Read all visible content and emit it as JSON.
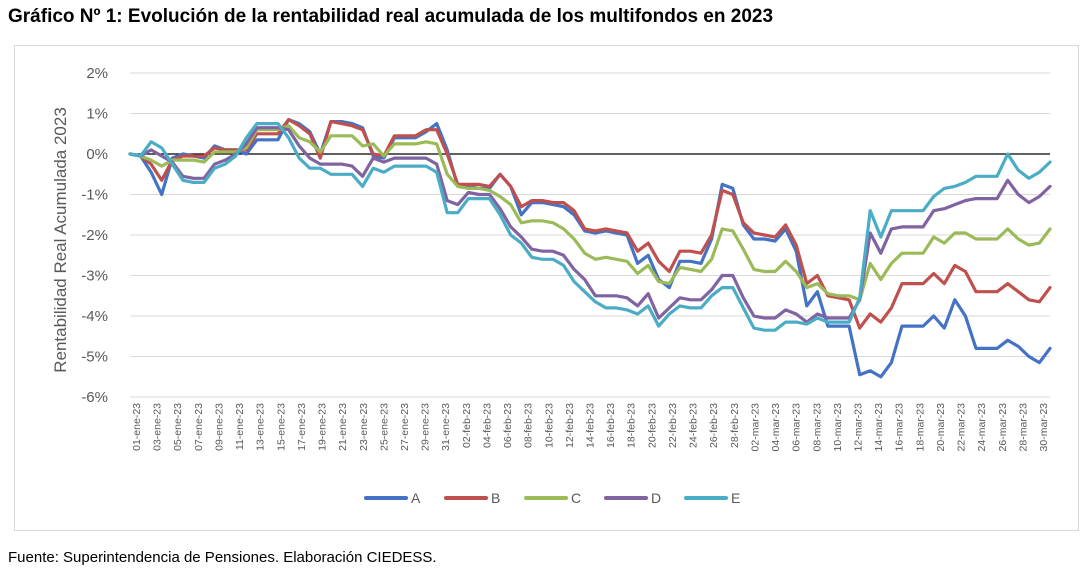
{
  "title": "Gráfico Nº 1: Evolución de la rentabilidad real acumulada de los multifondos en 2023",
  "source": "Fuente: Superintendencia de Pensiones. Elaboración CIEDESS.",
  "chart_data": {
    "type": "line",
    "ylabel": "Rentabilidad Real Acumulada 2023",
    "xlabel": "",
    "ylim": [
      -6,
      2
    ],
    "y_unit": "%",
    "y_ticks": [
      "2%",
      "1%",
      "0%",
      "-1%",
      "-2%",
      "-3%",
      "-4%",
      "-5%",
      "-6%"
    ],
    "grid": "horizontal",
    "legend_position": "bottom",
    "x_tick_labels": [
      "01-ene-23",
      "03-ene-23",
      "05-ene-23",
      "07-ene-23",
      "09-ene-23",
      "11-ene-23",
      "13-ene-23",
      "15-ene-23",
      "17-ene-23",
      "19-ene-23",
      "21-ene-23",
      "23-ene-23",
      "25-ene-23",
      "27-ene-23",
      "29-ene-23",
      "31-ene-23",
      "02-feb-23",
      "04-feb-23",
      "06-feb-23",
      "08-feb-23",
      "10-feb-23",
      "12-feb-23",
      "14-feb-23",
      "16-feb-23",
      "18-feb-23",
      "20-feb-23",
      "22-feb-23",
      "24-feb-23",
      "26-feb-23",
      "28-feb-23",
      "02-mar-23",
      "04-mar-23",
      "06-mar-23",
      "08-mar-23",
      "10-mar-23",
      "12-mar-23",
      "14-mar-23",
      "16-mar-23",
      "18-mar-23",
      "20-mar-23",
      "22-mar-23",
      "24-mar-23",
      "26-mar-23",
      "28-mar-23",
      "30-mar-23"
    ],
    "series": [
      {
        "name": "A",
        "color": "#4472C4",
        "values": [
          0,
          -0.05,
          -0.45,
          -1.0,
          -0.1,
          0.0,
          -0.05,
          -0.1,
          0.2,
          0.1,
          0.1,
          0.0,
          0.35,
          0.35,
          0.35,
          0.85,
          0.75,
          0.55,
          0.0,
          0.8,
          0.8,
          0.75,
          0.65,
          -0.05,
          -0.1,
          0.4,
          0.4,
          0.4,
          0.55,
          0.75,
          0.1,
          -0.8,
          -0.8,
          -0.85,
          -0.85,
          -0.5,
          -0.8,
          -1.5,
          -1.2,
          -1.2,
          -1.25,
          -1.3,
          -1.5,
          -1.9,
          -1.95,
          -1.9,
          -1.95,
          -2.0,
          -2.7,
          -2.5,
          -3.1,
          -3.3,
          -2.65,
          -2.65,
          -2.7,
          -2.1,
          -0.75,
          -0.85,
          -1.75,
          -2.1,
          -2.1,
          -2.15,
          -1.85,
          -2.4,
          -3.75,
          -3.4,
          -4.25,
          -4.25,
          -4.25,
          -5.45,
          -5.35,
          -5.5,
          -5.15,
          -4.25,
          -4.25,
          -4.25,
          -4.0,
          -4.3,
          -3.6,
          -4.0,
          -4.8,
          -4.8,
          -4.8,
          -4.6,
          -4.75,
          -5.0,
          -5.15,
          -4.8
        ]
      },
      {
        "name": "B",
        "color": "#C0504D",
        "values": [
          0,
          -0.05,
          -0.25,
          -0.65,
          -0.15,
          -0.05,
          -0.05,
          -0.05,
          0.15,
          0.1,
          0.1,
          0.1,
          0.5,
          0.5,
          0.5,
          0.85,
          0.7,
          0.5,
          -0.1,
          0.8,
          0.75,
          0.7,
          0.6,
          0.0,
          -0.05,
          0.45,
          0.45,
          0.45,
          0.6,
          0.6,
          0.0,
          -0.75,
          -0.75,
          -0.75,
          -0.8,
          -0.5,
          -0.8,
          -1.3,
          -1.15,
          -1.15,
          -1.2,
          -1.2,
          -1.4,
          -1.85,
          -1.9,
          -1.85,
          -1.9,
          -1.95,
          -2.4,
          -2.2,
          -2.65,
          -2.9,
          -2.4,
          -2.4,
          -2.45,
          -2.0,
          -0.9,
          -1.0,
          -1.7,
          -1.95,
          -2.0,
          -2.05,
          -1.75,
          -2.25,
          -3.2,
          -3.0,
          -3.5,
          -3.55,
          -3.6,
          -4.3,
          -3.95,
          -4.15,
          -3.8,
          -3.2,
          -3.2,
          -3.2,
          -2.95,
          -3.2,
          -2.75,
          -2.9,
          -3.4,
          -3.4,
          -3.4,
          -3.2,
          -3.4,
          -3.6,
          -3.65,
          -3.3
        ]
      },
      {
        "name": "C",
        "color": "#9BBB59",
        "values": [
          0,
          -0.05,
          -0.15,
          -0.3,
          -0.15,
          -0.15,
          -0.15,
          -0.2,
          0.05,
          0.05,
          0.05,
          0.15,
          0.6,
          0.6,
          0.6,
          0.7,
          0.4,
          0.3,
          0.05,
          0.45,
          0.45,
          0.45,
          0.2,
          0.25,
          -0.05,
          0.25,
          0.25,
          0.25,
          0.3,
          0.25,
          -0.5,
          -0.8,
          -0.85,
          -0.85,
          -0.9,
          -1.05,
          -1.25,
          -1.7,
          -1.65,
          -1.65,
          -1.7,
          -1.85,
          -2.1,
          -2.45,
          -2.6,
          -2.55,
          -2.6,
          -2.65,
          -2.95,
          -2.75,
          -3.15,
          -3.2,
          -2.8,
          -2.85,
          -2.9,
          -2.6,
          -1.85,
          -1.9,
          -2.35,
          -2.85,
          -2.9,
          -2.9,
          -2.65,
          -2.9,
          -3.3,
          -3.2,
          -3.45,
          -3.5,
          -3.5,
          -3.6,
          -2.7,
          -3.1,
          -2.7,
          -2.45,
          -2.45,
          -2.45,
          -2.05,
          -2.2,
          -1.95,
          -1.95,
          -2.1,
          -2.1,
          -2.1,
          -1.85,
          -2.1,
          -2.25,
          -2.2,
          -1.85
        ]
      },
      {
        "name": "D",
        "color": "#8064A2",
        "values": [
          0,
          -0.05,
          0.1,
          -0.05,
          -0.2,
          -0.55,
          -0.6,
          -0.6,
          -0.25,
          -0.15,
          0.0,
          0.25,
          0.65,
          0.65,
          0.65,
          0.6,
          0.2,
          -0.1,
          -0.25,
          -0.25,
          -0.25,
          -0.3,
          -0.55,
          -0.1,
          -0.2,
          -0.1,
          -0.1,
          -0.1,
          -0.1,
          -0.25,
          -1.15,
          -1.25,
          -0.95,
          -1.0,
          -1.0,
          -1.35,
          -1.8,
          -2.05,
          -2.35,
          -2.4,
          -2.4,
          -2.5,
          -2.85,
          -3.1,
          -3.5,
          -3.5,
          -3.5,
          -3.55,
          -3.75,
          -3.45,
          -4.05,
          -3.8,
          -3.55,
          -3.6,
          -3.6,
          -3.35,
          -3.0,
          -3.0,
          -3.55,
          -4.0,
          -4.05,
          -4.05,
          -3.85,
          -3.95,
          -4.15,
          -3.95,
          -4.05,
          -4.05,
          -4.05,
          -3.6,
          -1.95,
          -2.45,
          -1.85,
          -1.8,
          -1.8,
          -1.8,
          -1.4,
          -1.35,
          -1.25,
          -1.15,
          -1.1,
          -1.1,
          -1.1,
          -0.65,
          -1.0,
          -1.2,
          -1.05,
          -0.8
        ]
      },
      {
        "name": "E",
        "color": "#4BACC6",
        "values": [
          0,
          -0.05,
          0.3,
          0.15,
          -0.25,
          -0.65,
          -0.7,
          -0.7,
          -0.35,
          -0.25,
          -0.05,
          0.4,
          0.75,
          0.75,
          0.75,
          0.4,
          -0.1,
          -0.35,
          -0.35,
          -0.5,
          -0.5,
          -0.5,
          -0.8,
          -0.35,
          -0.45,
          -0.3,
          -0.3,
          -0.3,
          -0.3,
          -0.45,
          -1.45,
          -1.45,
          -1.1,
          -1.1,
          -1.1,
          -1.5,
          -2.0,
          -2.2,
          -2.55,
          -2.6,
          -2.6,
          -2.75,
          -3.15,
          -3.4,
          -3.65,
          -3.8,
          -3.8,
          -3.85,
          -3.95,
          -3.75,
          -4.25,
          -3.95,
          -3.75,
          -3.8,
          -3.8,
          -3.5,
          -3.3,
          -3.3,
          -3.8,
          -4.3,
          -4.35,
          -4.35,
          -4.15,
          -4.15,
          -4.2,
          -4.05,
          -4.15,
          -4.15,
          -4.15,
          -3.55,
          -1.4,
          -2.05,
          -1.4,
          -1.4,
          -1.4,
          -1.4,
          -1.05,
          -0.85,
          -0.8,
          -0.7,
          -0.55,
          -0.55,
          -0.55,
          0.0,
          -0.4,
          -0.6,
          -0.45,
          -0.2
        ]
      }
    ]
  }
}
